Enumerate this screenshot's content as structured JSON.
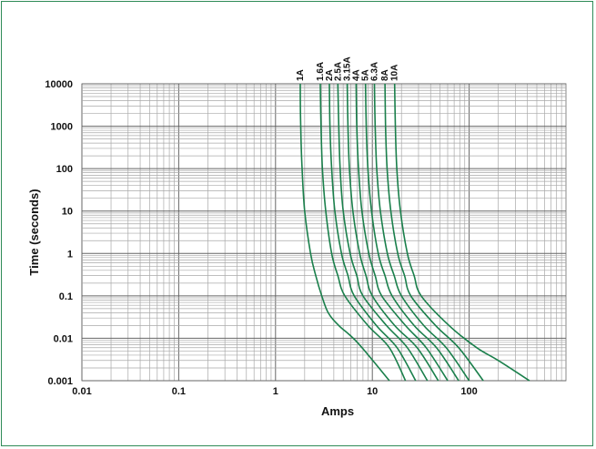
{
  "chart_data": {
    "type": "line",
    "xlabel": "Amps",
    "ylabel": "Time (seconds)",
    "x_scale": "log",
    "y_scale": "log",
    "xlim": [
      0.01,
      1000
    ],
    "ylim": [
      0.001,
      10000
    ],
    "x_tick_labels": [
      "0.01",
      "0.1",
      "1",
      "10",
      "100"
    ],
    "y_tick_labels": [
      "0.001",
      "0.01",
      "0.1",
      "1",
      "10",
      "100",
      "1000",
      "10000"
    ],
    "grid": true,
    "line_color": "#1a7f4b",
    "series": [
      {
        "name": "1A",
        "points": [
          [
            1.8,
            10000
          ],
          [
            1.82,
            1000
          ],
          [
            1.88,
            100
          ],
          [
            2.0,
            10
          ],
          [
            2.3,
            1
          ],
          [
            2.6,
            0.3
          ],
          [
            3.0,
            0.1
          ],
          [
            3.5,
            0.04
          ],
          [
            4.5,
            0.02
          ],
          [
            7,
            0.008
          ],
          [
            15,
            0.001
          ]
        ]
      },
      {
        "name": "1.6A",
        "points": [
          [
            2.9,
            10000
          ],
          [
            2.95,
            1000
          ],
          [
            3.05,
            100
          ],
          [
            3.3,
            10
          ],
          [
            3.8,
            1
          ],
          [
            4.4,
            0.3
          ],
          [
            5.2,
            0.1
          ],
          [
            9,
            0.02
          ],
          [
            15,
            0.006
          ],
          [
            22,
            0.001
          ]
        ]
      },
      {
        "name": "2A",
        "points": [
          [
            3.6,
            10000
          ],
          [
            3.65,
            1000
          ],
          [
            3.8,
            100
          ],
          [
            4.1,
            10
          ],
          [
            4.8,
            1
          ],
          [
            5.6,
            0.3
          ],
          [
            6.5,
            0.1
          ],
          [
            11,
            0.02
          ],
          [
            18,
            0.006
          ],
          [
            28,
            0.001
          ]
        ]
      },
      {
        "name": "2.5A",
        "points": [
          [
            4.4,
            10000
          ],
          [
            4.5,
            1000
          ],
          [
            4.65,
            100
          ],
          [
            5.0,
            10
          ],
          [
            5.9,
            1
          ],
          [
            6.9,
            0.3
          ],
          [
            8.0,
            0.1
          ],
          [
            14,
            0.02
          ],
          [
            23,
            0.006
          ],
          [
            37,
            0.001
          ]
        ]
      },
      {
        "name": "3.15A",
        "points": [
          [
            5.5,
            10000
          ],
          [
            5.6,
            1000
          ],
          [
            5.8,
            100
          ],
          [
            6.3,
            10
          ],
          [
            7.4,
            1
          ],
          [
            8.6,
            0.3
          ],
          [
            10,
            0.1
          ],
          [
            17,
            0.02
          ],
          [
            29,
            0.006
          ],
          [
            48,
            0.001
          ]
        ]
      },
      {
        "name": "4A",
        "points": [
          [
            6.8,
            10000
          ],
          [
            6.9,
            1000
          ],
          [
            7.2,
            100
          ],
          [
            7.8,
            10
          ],
          [
            9.2,
            1
          ],
          [
            10.7,
            0.3
          ],
          [
            12.5,
            0.1
          ],
          [
            22,
            0.02
          ],
          [
            36,
            0.006
          ],
          [
            60,
            0.001
          ]
        ]
      },
      {
        "name": "5A",
        "points": [
          [
            8.5,
            10000
          ],
          [
            8.65,
            1000
          ],
          [
            9.0,
            100
          ],
          [
            9.8,
            10
          ],
          [
            11.5,
            1
          ],
          [
            13.5,
            0.3
          ],
          [
            16,
            0.1
          ],
          [
            27,
            0.02
          ],
          [
            46,
            0.006
          ],
          [
            78,
            0.001
          ]
        ]
      },
      {
        "name": "6.3A",
        "points": [
          [
            10.5,
            10000
          ],
          [
            10.7,
            1000
          ],
          [
            11.1,
            100
          ],
          [
            12.1,
            10
          ],
          [
            14.3,
            1
          ],
          [
            16.8,
            0.3
          ],
          [
            20,
            0.1
          ],
          [
            34,
            0.02
          ],
          [
            58,
            0.006
          ],
          [
            100,
            0.001
          ]
        ]
      },
      {
        "name": "8A",
        "points": [
          [
            13.5,
            10000
          ],
          [
            13.7,
            1000
          ],
          [
            14.2,
            100
          ],
          [
            15.5,
            10
          ],
          [
            18.3,
            1
          ],
          [
            21.5,
            0.3
          ],
          [
            25,
            0.1
          ],
          [
            45,
            0.02
          ],
          [
            78,
            0.006
          ],
          [
            140,
            0.001
          ]
        ]
      },
      {
        "name": "10A",
        "points": [
          [
            17,
            10000
          ],
          [
            17.3,
            1000
          ],
          [
            17.9,
            100
          ],
          [
            19.5,
            10
          ],
          [
            23,
            1
          ],
          [
            27,
            0.3
          ],
          [
            32,
            0.1
          ],
          [
            62,
            0.02
          ],
          [
            120,
            0.006
          ],
          [
            200,
            0.003
          ],
          [
            420,
            0.001
          ]
        ]
      }
    ]
  }
}
